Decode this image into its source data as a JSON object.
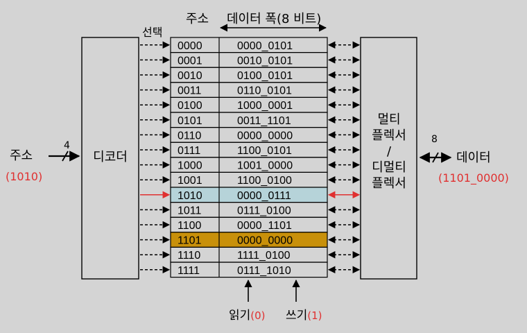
{
  "header": {
    "address_label": "주소",
    "width_label": "데이터 폭(8 비트)",
    "select_label": "선택"
  },
  "decoder": {
    "label": "디코더"
  },
  "mux": {
    "lines": [
      "멀티",
      "플렉서",
      "/",
      "디멀티",
      "플렉서"
    ]
  },
  "address_input": {
    "label": "주소",
    "value": "(1010)",
    "bus_width": "4"
  },
  "data_output": {
    "label": "데이터",
    "value": "(1101_0000)",
    "bus_width": "8"
  },
  "controls": {
    "read_label": "읽기",
    "read_value": "(0)",
    "write_label": "쓰기",
    "write_value": "(1)"
  },
  "memory": {
    "rows": [
      {
        "address": "0000",
        "data": "0000_0101"
      },
      {
        "address": "0001",
        "data": "0010_0101"
      },
      {
        "address": "0010",
        "data": "0100_0101"
      },
      {
        "address": "0011",
        "data": "0110_0101"
      },
      {
        "address": "0100",
        "data": "1000_0001"
      },
      {
        "address": "0101",
        "data": "0011_1101"
      },
      {
        "address": "0110",
        "data": "0000_0000"
      },
      {
        "address": "0111",
        "data": "1100_0101"
      },
      {
        "address": "1000",
        "data": "1001_0000"
      },
      {
        "address": "1001",
        "data": "1100_0100"
      },
      {
        "address": "1010",
        "data": "0000_0111",
        "state": "selected"
      },
      {
        "address": "1011",
        "data": "0111_0100"
      },
      {
        "address": "1100",
        "data": "0000_1101"
      },
      {
        "address": "1101",
        "data": "0000_0000",
        "state": "written"
      },
      {
        "address": "1110",
        "data": "1111_0100"
      },
      {
        "address": "1111",
        "data": "0111_1010"
      }
    ]
  },
  "colors": {
    "background": "#d4d4d4",
    "selected_row": "#b6d3d9",
    "written_row": "#c8900a",
    "accent_red": "#e03030",
    "line": "#000000"
  }
}
